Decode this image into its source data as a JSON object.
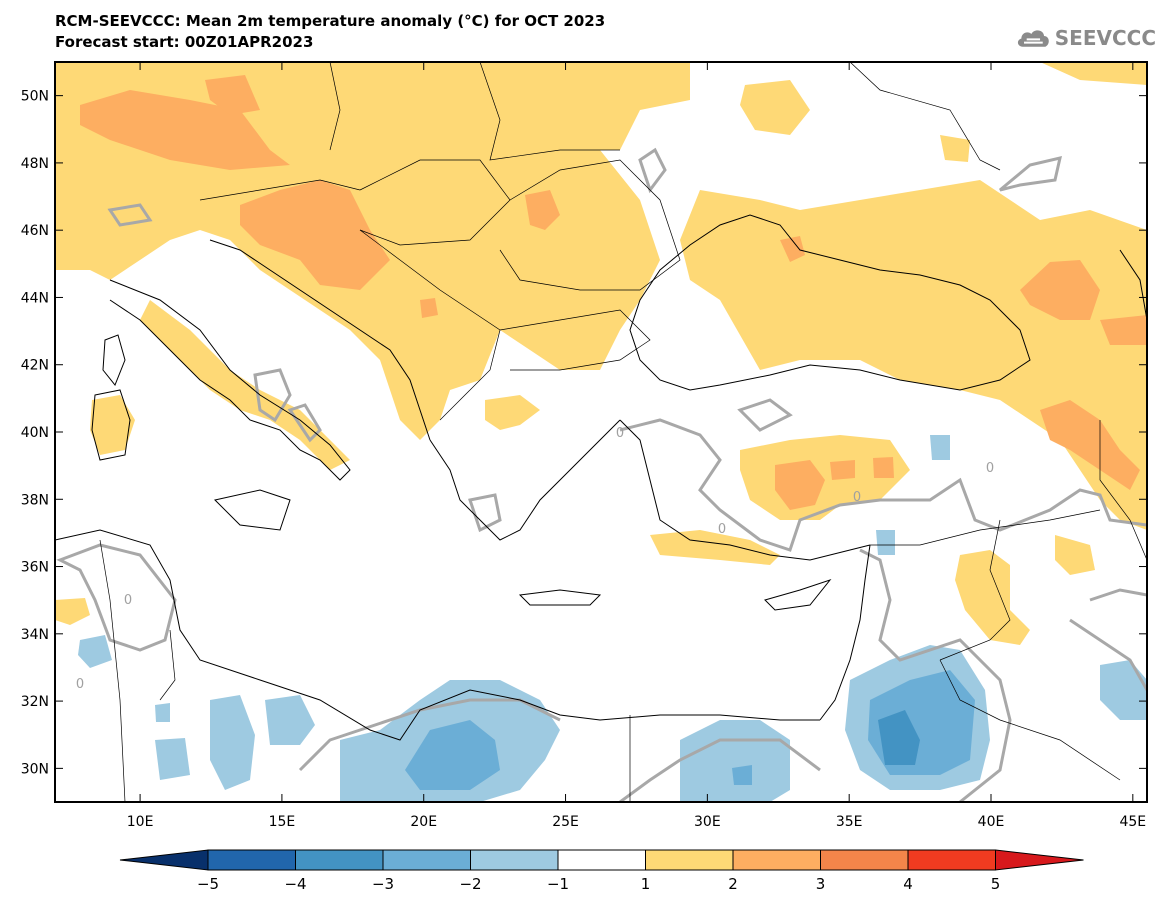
{
  "header": {
    "title_line1": "RCM-SEEVCCC: Mean 2m temperature anomaly (°C) for OCT 2023",
    "title_line2": "Forecast start: 00Z01APR2023",
    "logo_text": "SEEVCCC"
  },
  "map": {
    "projection": "lat-lon",
    "lon_range": [
      7,
      45.5
    ],
    "lat_range": [
      29,
      51
    ],
    "lat_ticks": [
      {
        "value": 50,
        "label": "50N"
      },
      {
        "value": 48,
        "label": "48N"
      },
      {
        "value": 46,
        "label": "46N"
      },
      {
        "value": 44,
        "label": "44N"
      },
      {
        "value": 42,
        "label": "42N"
      },
      {
        "value": 40,
        "label": "40N"
      },
      {
        "value": 38,
        "label": "38N"
      },
      {
        "value": 36,
        "label": "36N"
      },
      {
        "value": 34,
        "label": "34N"
      },
      {
        "value": 32,
        "label": "32N"
      },
      {
        "value": 30,
        "label": "30N"
      }
    ],
    "lon_ticks": [
      {
        "value": 10,
        "label": "10E"
      },
      {
        "value": 15,
        "label": "15E"
      },
      {
        "value": 20,
        "label": "20E"
      },
      {
        "value": 25,
        "label": "25E"
      },
      {
        "value": 30,
        "label": "30E"
      },
      {
        "value": 35,
        "label": "35E"
      },
      {
        "value": 40,
        "label": "40E"
      },
      {
        "value": 45,
        "label": "45E"
      }
    ],
    "contour_label": "0"
  },
  "colorbar": {
    "ticks": [
      "−5",
      "−4",
      "−3",
      "−2",
      "−1",
      "1",
      "2",
      "3",
      "4",
      "5"
    ],
    "colors": {
      "below_-5": "#08306b",
      "-5_-4": "#2166ac",
      "-4_-3": "#4393c3",
      "-3_-2": "#6baed6",
      "-2_-1": "#9ecae1",
      "-1_1": "#ffffff",
      "1_2": "#fed976",
      "2_3": "#fdae61",
      "3_4": "#f4854a",
      "4_5": "#f03b20",
      "above_5": "#d7191c"
    }
  }
}
